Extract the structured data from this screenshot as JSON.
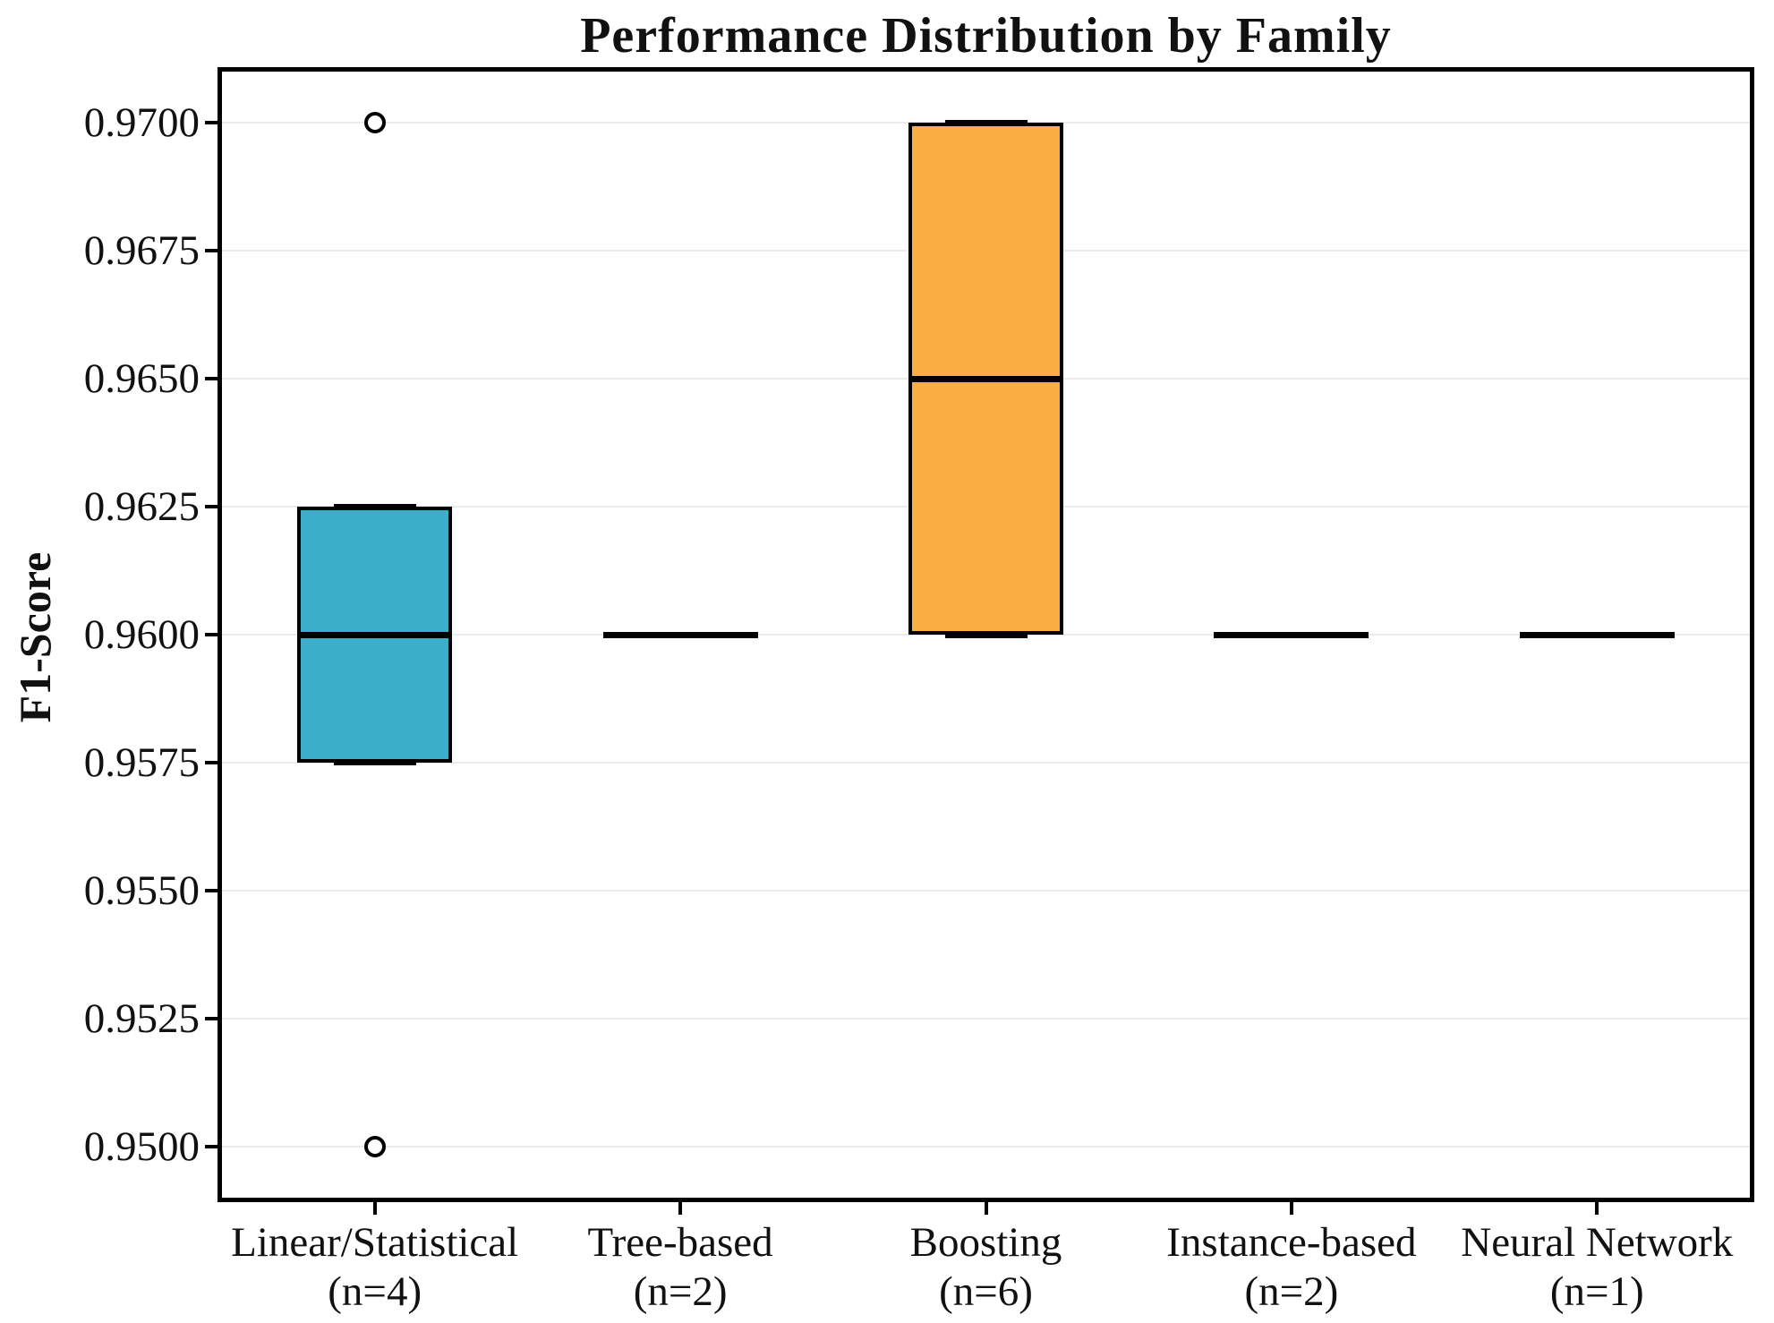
{
  "chart_data": {
    "type": "box",
    "title": "Performance Distribution by Family",
    "xlabel": "",
    "ylabel": "F1-Score",
    "ylim": [
      0.949,
      0.971
    ],
    "grid": true,
    "yticks": [
      {
        "value": 0.95,
        "label": "0.9500"
      },
      {
        "value": 0.9525,
        "label": "0.9525"
      },
      {
        "value": 0.955,
        "label": "0.9550"
      },
      {
        "value": 0.9575,
        "label": "0.9575"
      },
      {
        "value": 0.96,
        "label": "0.9600"
      },
      {
        "value": 0.9625,
        "label": "0.9625"
      },
      {
        "value": 0.965,
        "label": "0.9650"
      },
      {
        "value": 0.9675,
        "label": "0.9675"
      },
      {
        "value": 0.97,
        "label": "0.9700"
      }
    ],
    "categories": [
      {
        "label": "Linear/Statistical",
        "sublabel": "(n=4)",
        "q1": 0.9575,
        "median": 0.96,
        "q3": 0.9625,
        "whisker_low": 0.9575,
        "whisker_high": 0.9625,
        "outliers": [
          0.97,
          0.95
        ],
        "fill": "#3BAFC9"
      },
      {
        "label": "Tree-based",
        "sublabel": "(n=2)",
        "q1": 0.96,
        "median": 0.96,
        "q3": 0.96,
        "whisker_low": 0.96,
        "whisker_high": 0.96,
        "outliers": [],
        "fill": "none"
      },
      {
        "label": "Boosting",
        "sublabel": "(n=6)",
        "q1": 0.96,
        "median": 0.965,
        "q3": 0.97,
        "whisker_low": 0.96,
        "whisker_high": 0.97,
        "outliers": [],
        "fill": "#FBAE43"
      },
      {
        "label": "Instance-based",
        "sublabel": "(n=2)",
        "q1": 0.96,
        "median": 0.96,
        "q3": 0.96,
        "whisker_low": 0.96,
        "whisker_high": 0.96,
        "outliers": [],
        "fill": "none"
      },
      {
        "label": "Neural Network",
        "sublabel": "(n=1)",
        "q1": 0.96,
        "median": 0.96,
        "q3": 0.96,
        "whisker_low": 0.96,
        "whisker_high": 0.96,
        "outliers": [],
        "fill": "none"
      }
    ],
    "colors": {
      "box_edge": "#000000",
      "median_line": "#000000",
      "whisker_cap": "#000000",
      "gridline": "#ebebeb",
      "frame": "#000000",
      "background": "#ffffff",
      "linear_statistical_fill": "#3BAFC9",
      "boosting_fill": "#FBAE43"
    }
  }
}
